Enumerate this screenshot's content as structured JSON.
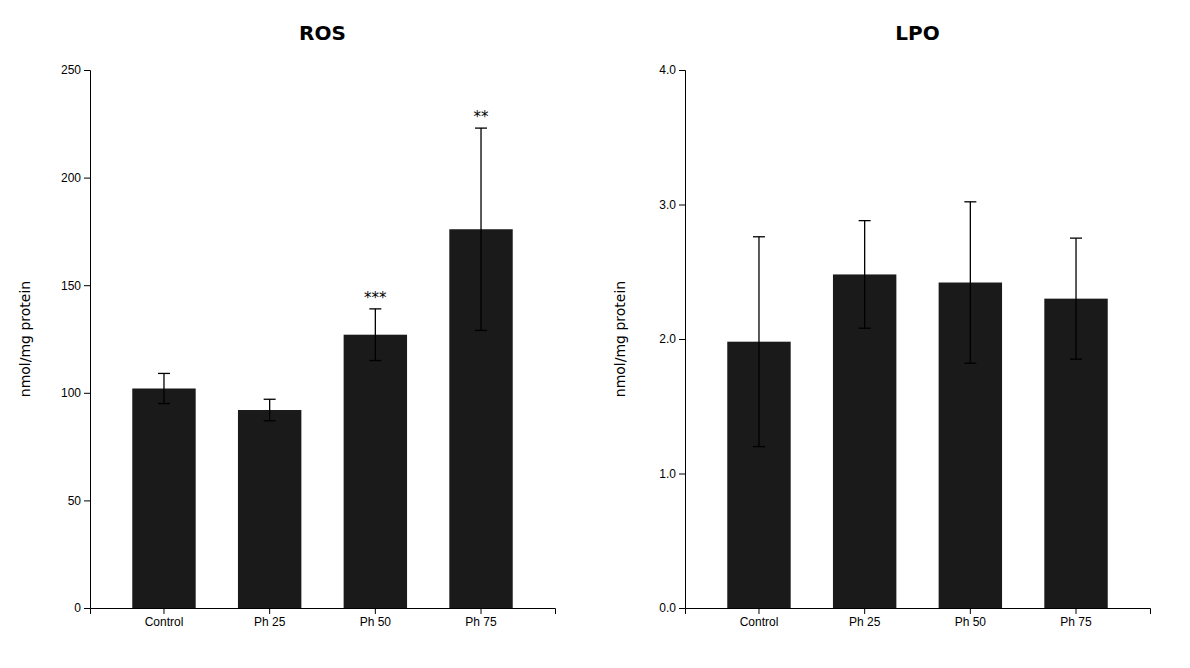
{
  "chart_data": [
    {
      "type": "bar",
      "title": "ROS",
      "categories": [
        "Control",
        "Ph 25",
        "Ph 50",
        "Ph 75"
      ],
      "values": [
        102,
        92,
        127,
        176
      ],
      "errors": [
        7,
        5,
        12,
        47
      ],
      "significance": [
        null,
        null,
        "***",
        "**"
      ],
      "y_label": "nmol/mg protein",
      "color": "#1a1a1a",
      "ylim": [
        0,
        250
      ],
      "yticks": [
        0,
        50,
        100,
        150,
        200,
        250
      ],
      "grid": false
    },
    {
      "type": "bar",
      "title": "LPO",
      "categories": [
        "Control",
        "Ph 25",
        "Ph 50",
        "Ph 75"
      ],
      "values": [
        1.98,
        2.48,
        2.42,
        2.3
      ],
      "errors": [
        0.78,
        0.4,
        0.6,
        0.45
      ],
      "y_label": "nmol/mg protein",
      "color": "#1a1a1a",
      "ylim": [
        0,
        4.0
      ],
      "yticks": [
        {
          "value": 0.0,
          "label": "0.0"
        },
        {
          "value": 1.0,
          "label": "1.0"
        },
        {
          "value": 2.0,
          "label": "2.0"
        },
        {
          "value": 3.0,
          "label": "3.0"
        },
        {
          "value": 4.0,
          "label": "4.0"
        }
      ],
      "grid": false
    }
  ]
}
